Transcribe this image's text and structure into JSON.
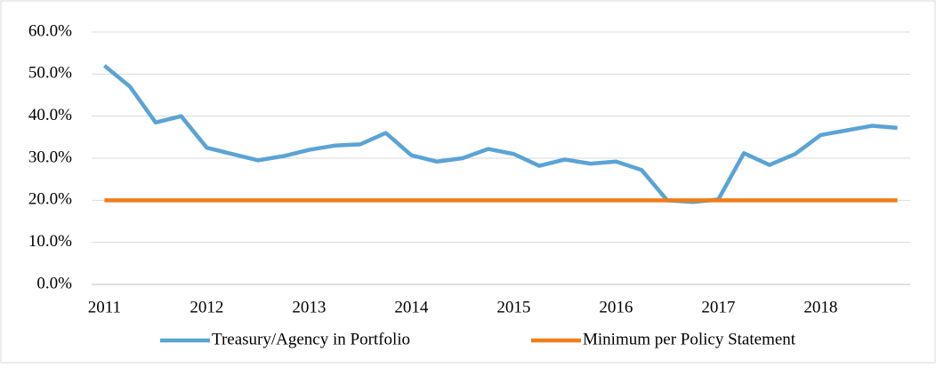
{
  "chart_data": {
    "type": "line",
    "categories": [
      "2011",
      null,
      null,
      null,
      "2012",
      null,
      null,
      null,
      "2013",
      null,
      null,
      null,
      "2014",
      null,
      null,
      null,
      "2015",
      null,
      null,
      null,
      "2016",
      null,
      null,
      null,
      "2017",
      null,
      null,
      null,
      "2018",
      null,
      null,
      null
    ],
    "series": [
      {
        "name": "Treasury/Agency in Portfolio",
        "color": "#5ba3d5",
        "values": [
          52,
          47,
          38.5,
          40,
          32.5,
          31,
          29.5,
          30.5,
          32,
          33,
          33.3,
          36,
          30.7,
          29.2,
          30,
          32.2,
          31,
          28.2,
          29.7,
          28.7,
          29.2,
          27.2,
          20,
          19.6,
          20.2,
          31.2,
          28.4,
          31,
          35.5,
          36.6,
          37.7,
          37.2
        ]
      },
      {
        "name": "Minimum per Policy Statement",
        "color": "#ef7d1a",
        "values": [
          20,
          20,
          20,
          20,
          20,
          20,
          20,
          20,
          20,
          20,
          20,
          20,
          20,
          20,
          20,
          20,
          20,
          20,
          20,
          20,
          20,
          20,
          20,
          20,
          20,
          20,
          20,
          20,
          20,
          20,
          20,
          20
        ]
      }
    ],
    "ylim": [
      0,
      60
    ],
    "yticks": [
      {
        "value": 0,
        "label": "0.0%"
      },
      {
        "value": 10,
        "label": "10.0%"
      },
      {
        "value": 20,
        "label": "20.0%"
      },
      {
        "value": 30,
        "label": "30.0%"
      },
      {
        "value": 40,
        "label": "40.0%"
      },
      {
        "value": 50,
        "label": "50.0%"
      },
      {
        "value": 60,
        "label": "60.0%"
      }
    ],
    "grid": true,
    "legend": "bottom"
  }
}
